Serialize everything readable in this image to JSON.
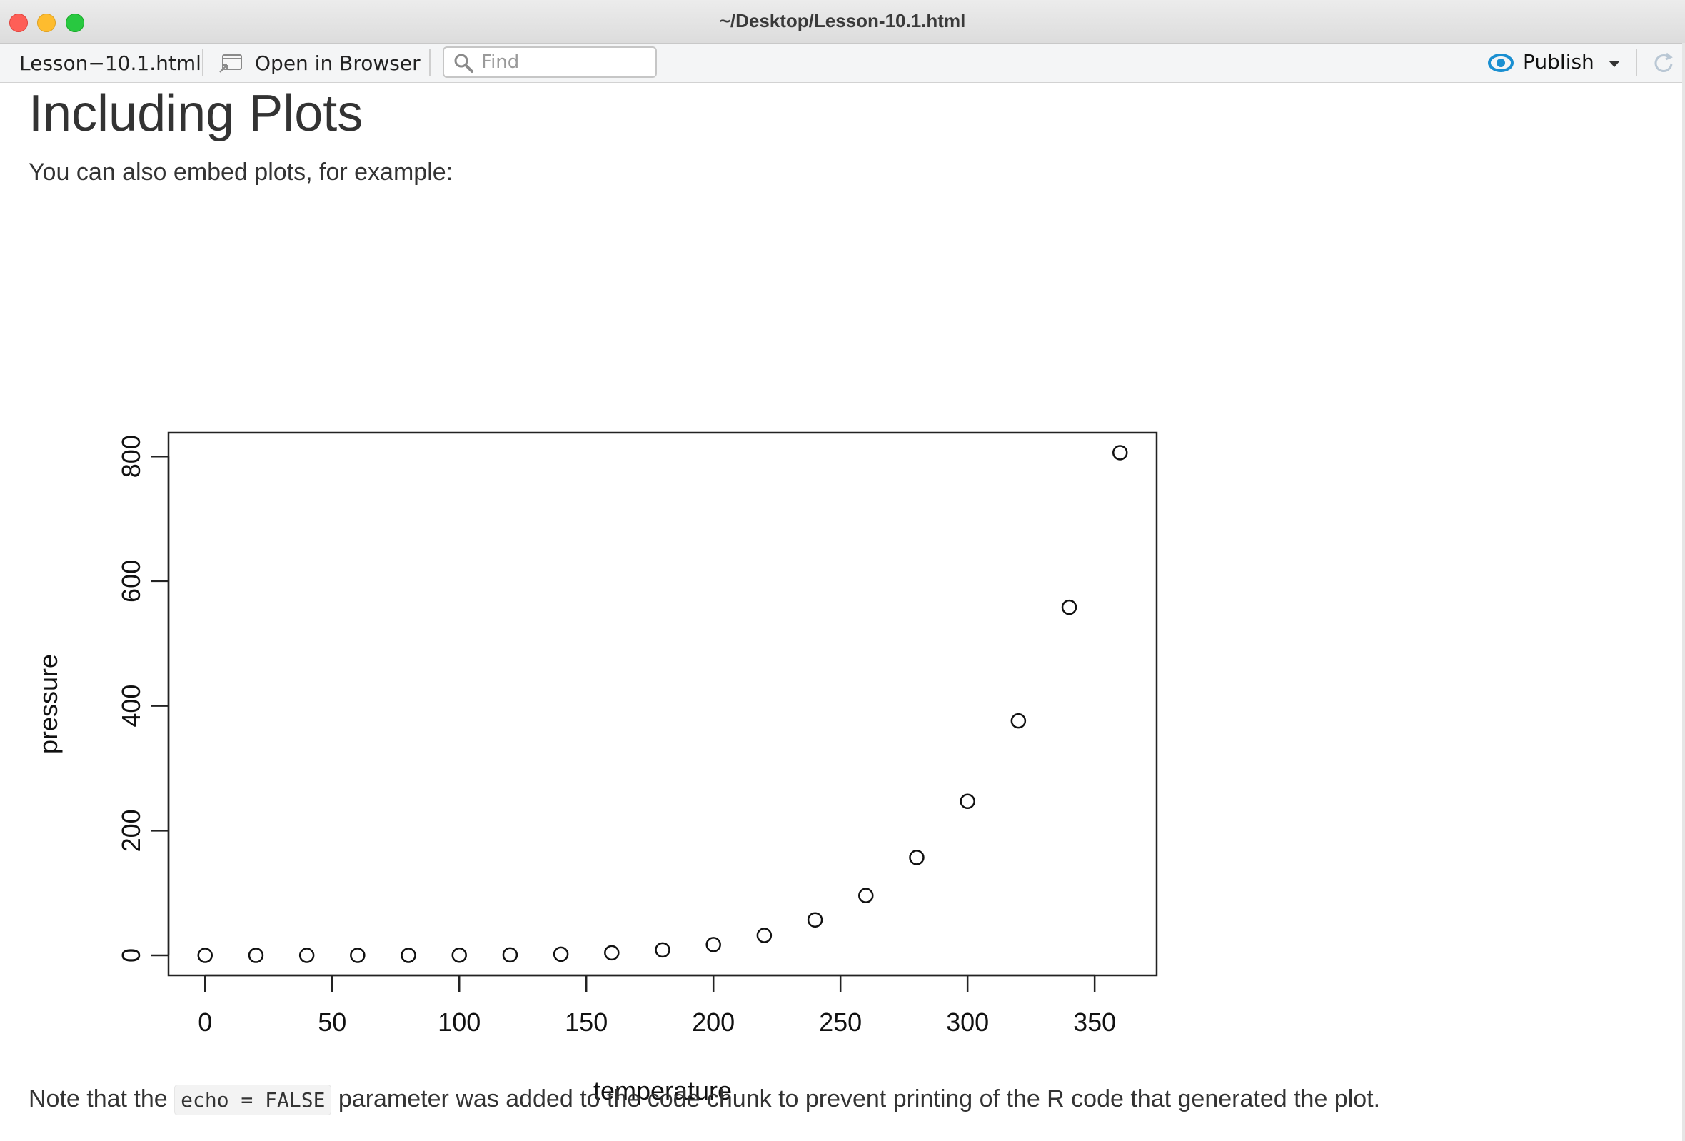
{
  "window": {
    "title": "~/Desktop/Lesson-10.1.html"
  },
  "toolbar": {
    "file_label": "Lesson−10.1.html",
    "open_browser_label": "Open in Browser",
    "find_placeholder": "Find",
    "publish_label": "Publish"
  },
  "document": {
    "heading": "Including Plots",
    "intro": "You can also embed plots, for example:",
    "note_before": "Note that the ",
    "note_code": "echo = FALSE",
    "note_after": " parameter was added to the code chunk to prevent printing of the R code that generated the plot."
  },
  "colors": {
    "publish_accent": "#1a8fd1"
  },
  "icons": {
    "browser": "open-in-browser-icon",
    "find": "search-icon",
    "publish": "publish-icon",
    "refresh": "refresh-icon"
  },
  "chart_data": {
    "type": "scatter",
    "xlabel": "temperature",
    "ylabel": "pressure",
    "xlim": [
      -14.4,
      374.4
    ],
    "ylim": [
      -32,
      838
    ],
    "xticks": [
      0,
      50,
      100,
      150,
      200,
      250,
      300,
      350
    ],
    "yticks": [
      0,
      200,
      400,
      600,
      800
    ],
    "x": [
      0,
      20,
      40,
      60,
      80,
      100,
      120,
      140,
      160,
      180,
      200,
      220,
      240,
      260,
      280,
      300,
      320,
      340,
      360
    ],
    "y": [
      0.0002,
      0.0012,
      0.006,
      0.03,
      0.09,
      0.27,
      0.75,
      1.85,
      4.2,
      8.8,
      17.3,
      32.1,
      57,
      96,
      157,
      247,
      376,
      558,
      806
    ],
    "marker": "open-circle",
    "grid": false
  }
}
